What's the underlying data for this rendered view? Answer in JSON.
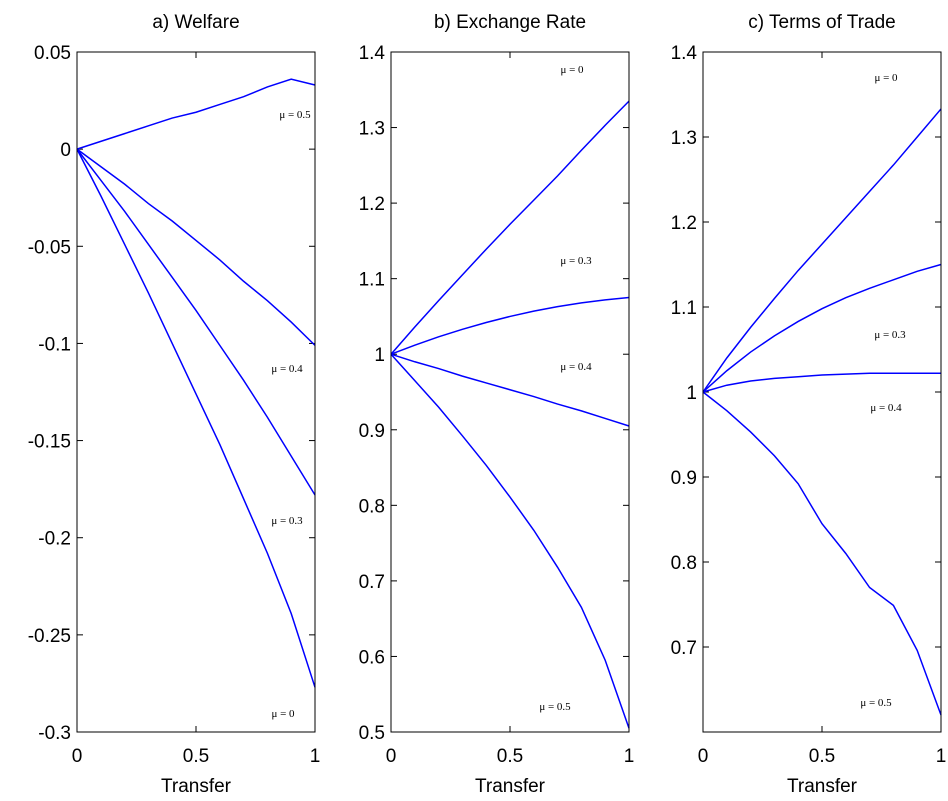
{
  "chart_data": [
    {
      "type": "line",
      "title": "a) Welfare",
      "xlabel": "Transfer",
      "x": [
        0,
        0.1,
        0.2,
        0.3,
        0.4,
        0.5,
        0.6,
        0.7,
        0.8,
        0.9,
        1
      ],
      "xlim": [
        0,
        1
      ],
      "xticks": [
        0,
        0.5,
        1
      ],
      "ylim": [
        -0.3,
        0.05
      ],
      "yticks": [
        0.05,
        0,
        -0.05,
        -0.1,
        -0.15,
        -0.2,
        -0.25,
        -0.3
      ],
      "series": [
        {
          "name": "μ = 0.5",
          "color": "#0000ff",
          "values": [
            0,
            0.004,
            0.008,
            0.012,
            0.016,
            0.019,
            0.023,
            0.027,
            0.032,
            0.036,
            0.033
          ]
        },
        {
          "name": "μ = 0.4",
          "color": "#0000ff",
          "values": [
            0,
            -0.009,
            -0.018,
            -0.028,
            -0.037,
            -0.047,
            -0.057,
            -0.068,
            -0.078,
            -0.089,
            -0.101
          ]
        },
        {
          "name": "μ = 0.3",
          "color": "#0000ff",
          "values": [
            0,
            -0.016,
            -0.032,
            -0.049,
            -0.066,
            -0.083,
            -0.101,
            -0.119,
            -0.138,
            -0.158,
            -0.178
          ]
        },
        {
          "name": "μ = 0",
          "color": "#0000ff",
          "values": [
            0,
            -0.024,
            -0.049,
            -0.074,
            -0.1,
            -0.126,
            -0.152,
            -0.18,
            -0.208,
            -0.239,
            -0.277
          ]
        }
      ]
    },
    {
      "type": "line",
      "title": "b) Exchange Rate",
      "xlabel": "Transfer",
      "x": [
        0,
        0.1,
        0.2,
        0.3,
        0.4,
        0.5,
        0.6,
        0.7,
        0.8,
        0.9,
        1
      ],
      "xlim": [
        0,
        1
      ],
      "xticks": [
        0,
        0.5,
        1
      ],
      "ylim": [
        0.5,
        1.4
      ],
      "yticks": [
        1.4,
        1.3,
        1.2,
        1.1,
        1,
        0.9,
        0.8,
        0.7,
        0.6,
        0.5
      ],
      "series": [
        {
          "name": "μ = 0",
          "color": "#0000ff",
          "values": [
            1,
            1.036,
            1.071,
            1.105,
            1.139,
            1.172,
            1.204,
            1.236,
            1.27,
            1.303,
            1.335
          ]
        },
        {
          "name": "μ = 0.3",
          "color": "#0000ff",
          "values": [
            1,
            1.012,
            1.023,
            1.033,
            1.042,
            1.05,
            1.057,
            1.063,
            1.068,
            1.072,
            1.075
          ]
        },
        {
          "name": "μ = 0.4",
          "color": "#0000ff",
          "values": [
            1,
            0.99,
            0.981,
            0.971,
            0.962,
            0.953,
            0.944,
            0.934,
            0.925,
            0.915,
            0.905
          ]
        },
        {
          "name": "μ = 0.5",
          "color": "#0000ff",
          "values": [
            1,
            0.965,
            0.93,
            0.892,
            0.853,
            0.811,
            0.767,
            0.718,
            0.665,
            0.595,
            0.505
          ]
        }
      ]
    },
    {
      "type": "line",
      "title": "c) Terms of Trade",
      "xlabel": "Transfer",
      "x": [
        0,
        0.1,
        0.2,
        0.3,
        0.4,
        0.5,
        0.6,
        0.7,
        0.8,
        0.9,
        1
      ],
      "xlim": [
        0,
        1
      ],
      "xticks": [
        0,
        0.5,
        1
      ],
      "ylim": [
        0.6,
        1.4
      ],
      "yticks": [
        1.4,
        1.3,
        1.2,
        1.1,
        1,
        0.9,
        0.8,
        0.7
      ],
      "series": [
        {
          "name": "μ = 0",
          "color": "#0000ff",
          "values": [
            1,
            1.04,
            1.076,
            1.11,
            1.143,
            1.174,
            1.205,
            1.236,
            1.267,
            1.3,
            1.333
          ]
        },
        {
          "name": "μ = 0.3",
          "color": "#0000ff",
          "values": [
            1,
            1.025,
            1.047,
            1.066,
            1.083,
            1.098,
            1.111,
            1.122,
            1.132,
            1.142,
            1.15
          ]
        },
        {
          "name": "μ = 0.4",
          "color": "#0000ff",
          "values": [
            1,
            1.008,
            1.013,
            1.016,
            1.018,
            1.02,
            1.021,
            1.022,
            1.022,
            1.022,
            1.022
          ]
        },
        {
          "name": "μ = 0.5",
          "color": "#0000ff",
          "values": [
            1,
            0.978,
            0.953,
            0.925,
            0.892,
            0.845,
            0.81,
            0.77,
            0.749,
            0.696,
            0.62
          ]
        }
      ]
    }
  ]
}
